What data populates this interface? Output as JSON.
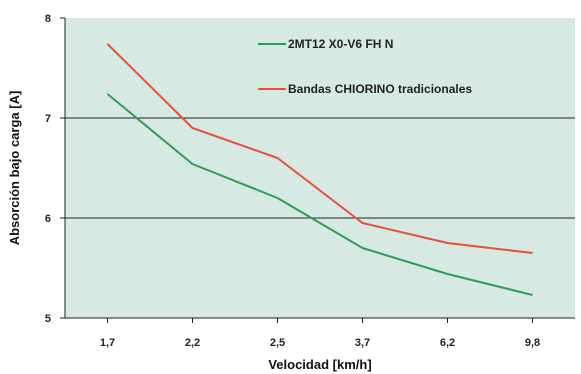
{
  "chart_data": {
    "type": "line",
    "title": "",
    "xlabel": "Velocidad [km/h]",
    "ylabel": "Absorción bajo carga [A]",
    "categories": [
      "1,7",
      "2,2",
      "2,5",
      "3,7",
      "6,2",
      "9,8"
    ],
    "ylim": [
      5,
      8
    ],
    "yticks": [
      "5",
      "6",
      "7",
      "8"
    ],
    "grid": "horizontal at 6 and 7",
    "legend_position": "top-right inside plot",
    "background_color": "#d6e9e3",
    "series": [
      {
        "name": "2MT12 X0-V6 FH N",
        "color": "#2f9d55",
        "values": [
          7.24,
          6.54,
          6.2,
          5.7,
          5.44,
          5.23
        ]
      },
      {
        "name": "Bandas CHIORINO tradicionales",
        "color": "#e8503c",
        "values": [
          7.74,
          6.9,
          6.6,
          5.95,
          5.75,
          5.65
        ]
      }
    ]
  }
}
